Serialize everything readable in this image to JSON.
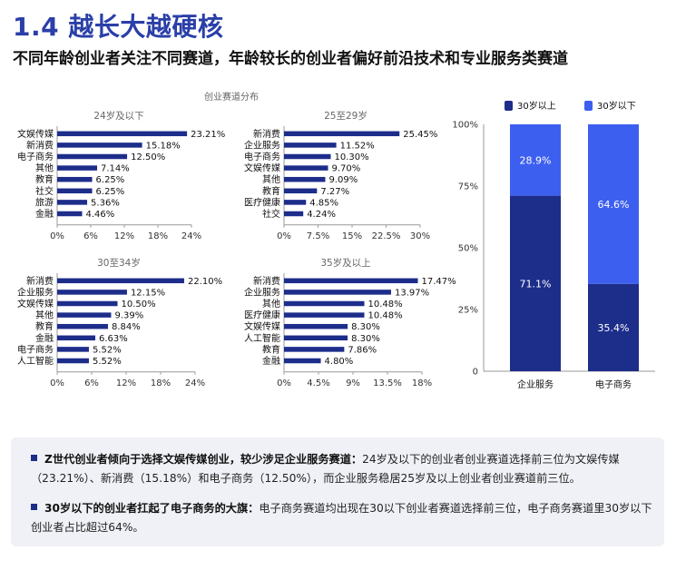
{
  "header": {
    "title": "1.4 越长大越硬核",
    "subtitle": "不同年龄创业者关注不同赛道，年龄较长的创业者偏好前沿技术和专业服务类赛道"
  },
  "chart_data": [
    {
      "type": "bar",
      "orientation": "horizontal",
      "title": "创业赛道分布",
      "subtitle": "24岁及以下",
      "categories": [
        "文娱传媒",
        "新消费",
        "电子商务",
        "其他",
        "教育",
        "社交",
        "旅游",
        "金融"
      ],
      "values": [
        23.21,
        15.18,
        12.5,
        7.14,
        6.25,
        6.25,
        5.36,
        4.46
      ],
      "labels": [
        "23.21%",
        "15.18%",
        "12.50%",
        "7.14%",
        "6.25%",
        "6.25%",
        "5.36%",
        "4.46%"
      ],
      "xlim": [
        0,
        24
      ],
      "xticks": [
        "0%",
        "6%",
        "12%",
        "18%",
        "24%"
      ]
    },
    {
      "type": "bar",
      "orientation": "horizontal",
      "subtitle": "25至29岁",
      "categories": [
        "新消费",
        "企业服务",
        "电子商务",
        "文娱传媒",
        "其他",
        "教育",
        "医疗健康",
        "社交"
      ],
      "values": [
        25.45,
        11.52,
        10.3,
        9.7,
        9.09,
        7.27,
        4.85,
        4.24
      ],
      "labels": [
        "25.45%",
        "11.52%",
        "10.30%",
        "9.70%",
        "9.09%",
        "7.27%",
        "4.85%",
        "4.24%"
      ],
      "xlim": [
        0,
        30
      ],
      "xticks": [
        "0%",
        "7.5%",
        "15%",
        "22.5%",
        "30%"
      ]
    },
    {
      "type": "bar",
      "orientation": "horizontal",
      "subtitle": "30至34岁",
      "categories": [
        "新消费",
        "企业服务",
        "文娱传媒",
        "其他",
        "教育",
        "金融",
        "电子商务",
        "人工智能"
      ],
      "values": [
        22.1,
        12.15,
        10.5,
        9.39,
        8.84,
        6.63,
        5.52,
        5.52
      ],
      "labels": [
        "22.10%",
        "12.15%",
        "10.50%",
        "9.39%",
        "8.84%",
        "6.63%",
        "5.52%",
        "5.52%"
      ],
      "xlim": [
        0,
        24
      ],
      "xticks": [
        "0%",
        "6%",
        "12%",
        "18%",
        "24%"
      ]
    },
    {
      "type": "bar",
      "orientation": "horizontal",
      "subtitle": "35岁及以上",
      "categories": [
        "新消费",
        "企业服务",
        "其他",
        "医疗健康",
        "文娱传媒",
        "人工智能",
        "教育",
        "金融"
      ],
      "values": [
        17.47,
        13.97,
        10.48,
        10.48,
        8.3,
        8.3,
        7.86,
        4.8
      ],
      "labels": [
        "17.47%",
        "13.97%",
        "10.48%",
        "10.48%",
        "8.30%",
        "8.30%",
        "7.86%",
        "4.80%"
      ],
      "xlim": [
        0,
        18
      ],
      "xticks": [
        "0%",
        "4.5%",
        "9%",
        "13.5%",
        "18%"
      ]
    },
    {
      "type": "bar",
      "stacked": true,
      "categories": [
        "企业服务",
        "电子商务"
      ],
      "series": [
        {
          "name": "30岁以上",
          "values": [
            71.1,
            35.4
          ],
          "labels": [
            "71.1%",
            "35.4%"
          ],
          "color": "#1d2d8a"
        },
        {
          "name": "30岁以下",
          "values": [
            28.9,
            64.6
          ],
          "labels": [
            "28.9%",
            "64.6%"
          ],
          "color": "#3d5ff0"
        }
      ],
      "ylim": [
        0,
        100
      ],
      "yticks": [
        "0",
        "25%",
        "50%",
        "75%",
        "100%"
      ],
      "legend": "top"
    }
  ],
  "colors": {
    "bar": "#1d2d8a",
    "accent": "#3d5ff0",
    "title": "#2a3fa8"
  },
  "summary": [
    {
      "bold": "Z世代创业者倾向于选择文娱传媒创业，较少涉足企业服务赛道：",
      "text": "24岁及以下的创业者创业赛道选择前三位为文娱传媒（23.21%）、新消费（15.18%）和电子商务（12.50%），而企业服务稳居25岁及以上创业者创业赛道前三位。"
    },
    {
      "bold": "30岁以下的创业者扛起了电子商务的大旗：",
      "text": "电子商务赛道均出现在30以下创业者赛道选择前三位，电子商务赛道里30岁以下创业者占比超过64%。"
    }
  ]
}
